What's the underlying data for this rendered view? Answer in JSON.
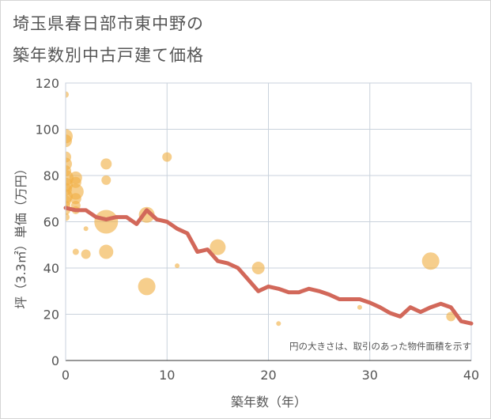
{
  "title_line1": "埼玉県春日部市東中野の",
  "title_line2": "築年数別中古戸建て価格",
  "chart_data": {
    "type": "scatter",
    "title": "埼玉県春日部市東中野の築年数別中古戸建て価格",
    "xlabel": "築年数（年）",
    "ylabel": "坪（3.3㎡）単価（万円）",
    "xlim": [
      0,
      40
    ],
    "ylim": [
      0,
      120
    ],
    "xticks": [
      "0",
      "10",
      "20",
      "30",
      "40"
    ],
    "yticks": [
      "0",
      "20",
      "40",
      "60",
      "80",
      "100",
      "120"
    ],
    "grid": true,
    "annotation": "円の大きさは、取引のあった物件面積を示す",
    "colors": {
      "bubble": "#f0b046",
      "line": "#d2685a"
    },
    "bubbles": [
      {
        "x": 0,
        "y": 115,
        "size": 4
      },
      {
        "x": 0,
        "y": 97,
        "size": 9
      },
      {
        "x": 0,
        "y": 95,
        "size": 8
      },
      {
        "x": 0,
        "y": 88,
        "size": 7
      },
      {
        "x": 0,
        "y": 85,
        "size": 8
      },
      {
        "x": 0,
        "y": 82,
        "size": 7
      },
      {
        "x": 0,
        "y": 79,
        "size": 10
      },
      {
        "x": 0,
        "y": 76,
        "size": 9
      },
      {
        "x": 0,
        "y": 74,
        "size": 8
      },
      {
        "x": 0,
        "y": 71,
        "size": 9
      },
      {
        "x": 0,
        "y": 69,
        "size": 7
      },
      {
        "x": 0,
        "y": 67,
        "size": 6
      },
      {
        "x": 0,
        "y": 65,
        "size": 6
      },
      {
        "x": 0,
        "y": 62,
        "size": 5
      },
      {
        "x": 1,
        "y": 79,
        "size": 8
      },
      {
        "x": 1,
        "y": 77,
        "size": 7
      },
      {
        "x": 1,
        "y": 73,
        "size": 10
      },
      {
        "x": 1,
        "y": 70,
        "size": 7
      },
      {
        "x": 1,
        "y": 67,
        "size": 6
      },
      {
        "x": 1,
        "y": 65,
        "size": 5
      },
      {
        "x": 1,
        "y": 47,
        "size": 4
      },
      {
        "x": 2,
        "y": 57,
        "size": 3
      },
      {
        "x": 2,
        "y": 46,
        "size": 6
      },
      {
        "x": 4,
        "y": 85,
        "size": 7
      },
      {
        "x": 4,
        "y": 78,
        "size": 6
      },
      {
        "x": 4,
        "y": 60,
        "size": 15
      },
      {
        "x": 4,
        "y": 47,
        "size": 9
      },
      {
        "x": 8,
        "y": 63,
        "size": 10
      },
      {
        "x": 8,
        "y": 32,
        "size": 11
      },
      {
        "x": 10,
        "y": 88,
        "size": 6
      },
      {
        "x": 11,
        "y": 41,
        "size": 3
      },
      {
        "x": 15,
        "y": 49,
        "size": 10
      },
      {
        "x": 19,
        "y": 40,
        "size": 8
      },
      {
        "x": 21,
        "y": 16,
        "size": 3
      },
      {
        "x": 29,
        "y": 23,
        "size": 3
      },
      {
        "x": 36,
        "y": 43,
        "size": 11
      },
      {
        "x": 38,
        "y": 19,
        "size": 6
      }
    ],
    "trend": {
      "x": [
        0,
        1,
        2,
        3,
        4,
        5,
        6,
        7,
        8,
        9,
        10,
        11,
        12,
        13,
        14,
        15,
        16,
        17,
        18,
        19,
        20,
        21,
        22,
        23,
        24,
        25,
        26,
        27,
        28,
        29,
        30,
        31,
        32,
        33,
        34,
        35,
        36,
        37,
        38,
        39,
        40
      ],
      "y": [
        66,
        65,
        65,
        62,
        61,
        62,
        62,
        59,
        65,
        61,
        60,
        57,
        55,
        47,
        48,
        43,
        42,
        40,
        35,
        30,
        32,
        31,
        29.5,
        29.5,
        31,
        30,
        28.5,
        26.5,
        26.5,
        26.5,
        25,
        23,
        20.5,
        19,
        23,
        21,
        23,
        24.5,
        23,
        17,
        16
      ]
    }
  }
}
